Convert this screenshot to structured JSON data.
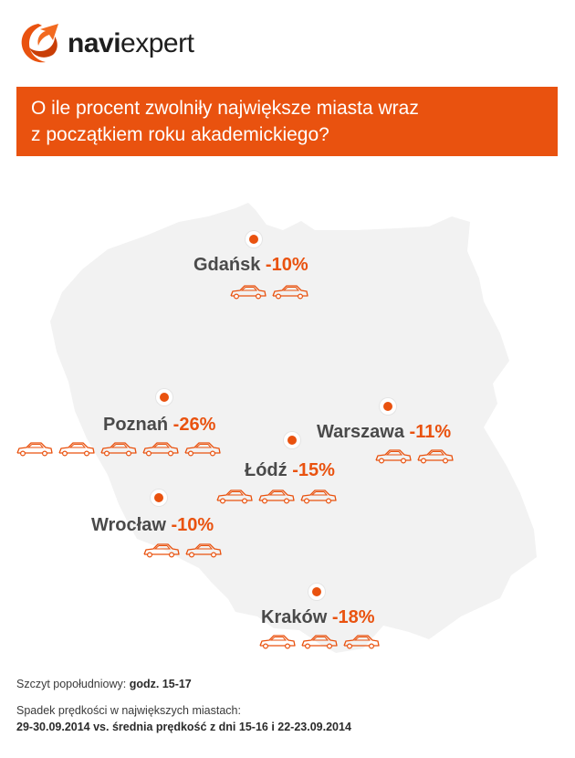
{
  "brand": {
    "part1": "navi",
    "part2": "expert",
    "logo": "naviexpert-swirl-logo"
  },
  "banner": {
    "line1": "O ile procent zwolniły największe miasta wraz",
    "line2": "z początkiem roku akademickiego?"
  },
  "colors": {
    "accent": "#e9520f",
    "map_fill": "#f2f2f2",
    "text_dark": "#4a4a4a"
  },
  "icons": {
    "marker": "city-marker-dot",
    "car": "car-outline-icon"
  },
  "cities": [
    {
      "id": "gdansk",
      "name": "Gdańsk",
      "change": "-10%",
      "cars": 2
    },
    {
      "id": "poznan",
      "name": "Poznań",
      "change": "-26%",
      "cars": 5
    },
    {
      "id": "warszawa",
      "name": "Warszawa",
      "change": "-11%",
      "cars": 2
    },
    {
      "id": "lodz",
      "name": "Łódź",
      "change": "-15%",
      "cars": 3
    },
    {
      "id": "wroclaw",
      "name": "Wrocław",
      "change": "-10%",
      "cars": 2
    },
    {
      "id": "krakow",
      "name": "Kraków",
      "change": "-18%",
      "cars": 3
    }
  ],
  "footer": {
    "peak_label": "Szczyt popołudniowy:",
    "peak_value": "godz. 15-17",
    "note_line1": "Spadek prędkości w największych miastach:",
    "note_line2": "29-30.09.2014 vs. średnia prędkość z dni 15-16 i 22-23.09.2014"
  }
}
